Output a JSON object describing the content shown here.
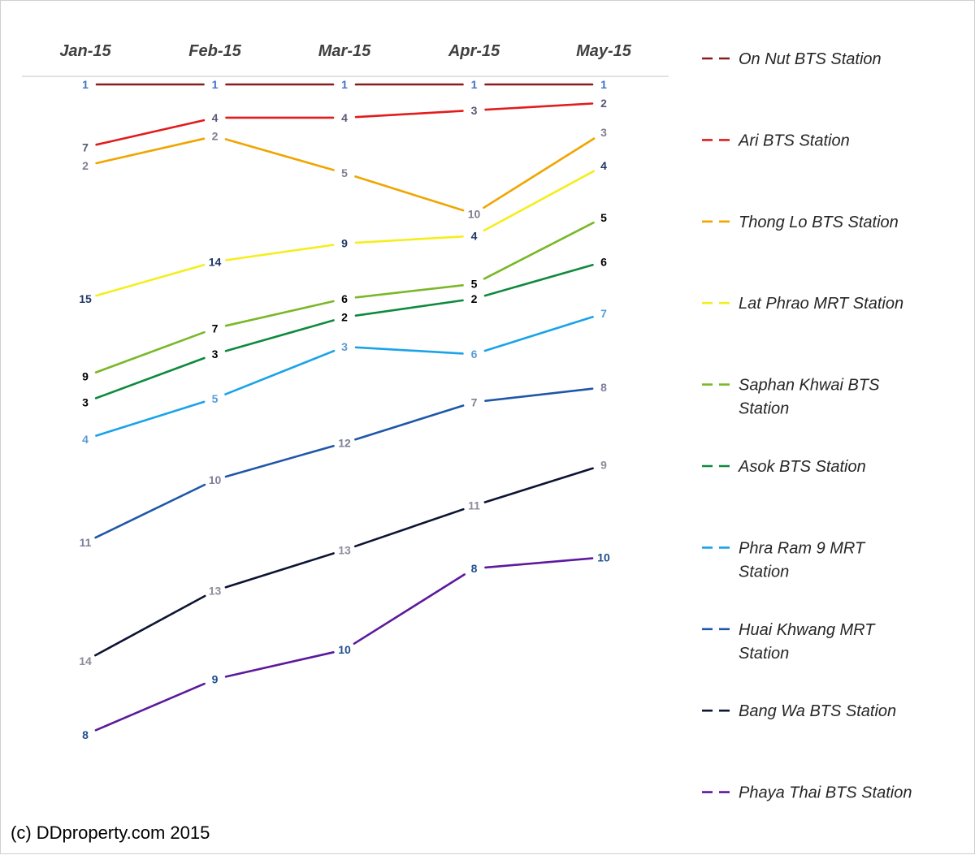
{
  "credit": "(c) DDproperty.com 2015",
  "chart_data": {
    "type": "line",
    "title": "",
    "xlabel": "",
    "ylabel": "",
    "categories": [
      "Jan-15",
      "Feb-15",
      "Mar-15",
      "Apr-15",
      "May-15"
    ],
    "grid": false,
    "legend_position": "right",
    "value_meaning": "rank label shown at each point",
    "series": [
      {
        "name": "On Nut BTS Station",
        "color": "#8b1a1a",
        "y": [
          1,
          1,
          1,
          1,
          1
        ],
        "labels": [
          "1",
          "1",
          "1",
          "1",
          "1"
        ],
        "label_colors": [
          "#4472c4",
          "#4472c4",
          "#4472c4",
          "#4472c4",
          "#4472c4"
        ]
      },
      {
        "name": "Ari BTS Station",
        "color": "#e31b1b",
        "y": [
          2.7,
          1.9,
          1.9,
          1.7,
          1.5
        ],
        "labels": [
          "7",
          "4",
          "4",
          "3",
          "2"
        ],
        "label_colors": [
          "#595979",
          "#595979",
          "#595979",
          "#595979",
          "#595979"
        ]
      },
      {
        "name": "Thong Lo BTS Station",
        "color": "#f0a500",
        "y": [
          3.2,
          2.4,
          3.4,
          4.5,
          2.3
        ],
        "labels": [
          "2",
          "2",
          "5",
          "10",
          "3"
        ],
        "label_colors": [
          "#7f7f8f",
          "#7f7f8f",
          "#7f7f8f",
          "#7f7f8f",
          "#7f7f8f"
        ]
      },
      {
        "name": "Lat Phrao MRT Station",
        "color": "#f5ee1c",
        "y": [
          6.8,
          5.8,
          5.3,
          5.1,
          3.2
        ],
        "labels": [
          "15",
          "14",
          "9",
          "4",
          "4"
        ],
        "label_colors": [
          "#1f3864",
          "#1f3864",
          "#1f3864",
          "#1f3864",
          "#1f3864"
        ]
      },
      {
        "name": "Saphan Khwai BTS Station",
        "color": "#7ab829",
        "y": [
          8.9,
          7.6,
          6.8,
          6.4,
          4.6
        ],
        "labels": [
          "9",
          "7",
          "6",
          "5",
          "5"
        ],
        "label_colors": [
          "#000000",
          "#000000",
          "#000000",
          "#000000",
          "#000000"
        ]
      },
      {
        "name": "Asok BTS Station",
        "color": "#0e8a3e",
        "y": [
          9.6,
          8.3,
          7.3,
          6.8,
          5.8
        ],
        "labels": [
          "3",
          "3",
          "2",
          "2",
          "6"
        ],
        "label_colors": [
          "#000000",
          "#000000",
          "#000000",
          "#000000",
          "#000000"
        ]
      },
      {
        "name": "Phra Ram 9 MRT Station",
        "color": "#1aa3e8",
        "y": [
          10.6,
          9.5,
          8.1,
          8.3,
          7.2
        ],
        "labels": [
          "4",
          "5",
          "3",
          "6",
          "7"
        ],
        "label_colors": [
          "#5b9bd5",
          "#5b9bd5",
          "#5b9bd5",
          "#5b9bd5",
          "#5b9bd5"
        ]
      },
      {
        "name": "Huai Khwang MRT Station",
        "color": "#1f57a8",
        "y": [
          13.4,
          11.7,
          10.7,
          9.6,
          9.2
        ],
        "labels": [
          "11",
          "10",
          "12",
          "7",
          "8"
        ],
        "label_colors": [
          "#7f7f99",
          "#7f7f99",
          "#7f7f99",
          "#7f7f99",
          "#7f7f99"
        ]
      },
      {
        "name": "Bang Wa BTS Station",
        "color": "#0d1433",
        "y": [
          16.6,
          14.7,
          13.6,
          12.4,
          11.3
        ],
        "labels": [
          "14",
          "13",
          "13",
          "11",
          "9"
        ],
        "label_colors": [
          "#8c8c9c",
          "#8c8c9c",
          "#8c8c9c",
          "#8c8c9c",
          "#8c8c9c"
        ]
      },
      {
        "name": "Phaya Thai BTS Station",
        "color": "#5c1a9c",
        "y": [
          18.6,
          17.1,
          16.3,
          14.1,
          13.8
        ],
        "labels": [
          "8",
          "9",
          "10",
          "8",
          "10"
        ],
        "label_colors": [
          "#1f4e8c",
          "#1f4e8c",
          "#1f4e8c",
          "#1f4e8c",
          "#1f4e8c"
        ]
      }
    ]
  }
}
